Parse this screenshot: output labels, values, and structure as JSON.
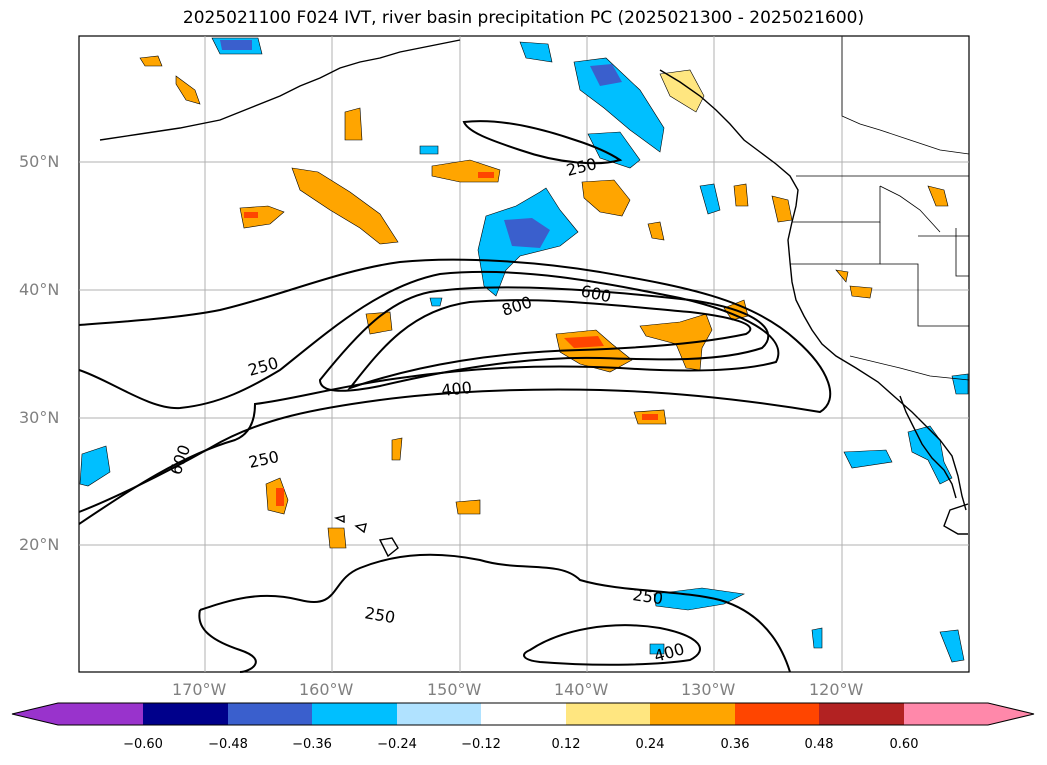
{
  "title": "2025021100 F024 IVT, river basin precipitation PC (2025021300 - 2025021600)",
  "lat_labels": [
    "50°N",
    "40°N",
    "30°N",
    "20°N"
  ],
  "lon_labels": [
    "170°W",
    "160°W",
    "150°W",
    "140°W",
    "130°W",
    "120°W"
  ],
  "contour_labels": [
    "250",
    "600",
    "800",
    "400",
    "250",
    "250",
    "600",
    "250",
    "400",
    "250"
  ],
  "colorbar": {
    "ticks": [
      "−0.60",
      "−0.48",
      "−0.36",
      "−0.24",
      "−0.12",
      "0.12",
      "0.24",
      "0.36",
      "0.48",
      "0.60"
    ],
    "colors": [
      "#9933cc",
      "#00008b",
      "#3a5fcd",
      "#00bfff",
      "#b0e2ff",
      "#ffffff",
      "#ffe680",
      "#ffa500",
      "#ff4500",
      "#b22222",
      "#ff88aa"
    ]
  }
}
